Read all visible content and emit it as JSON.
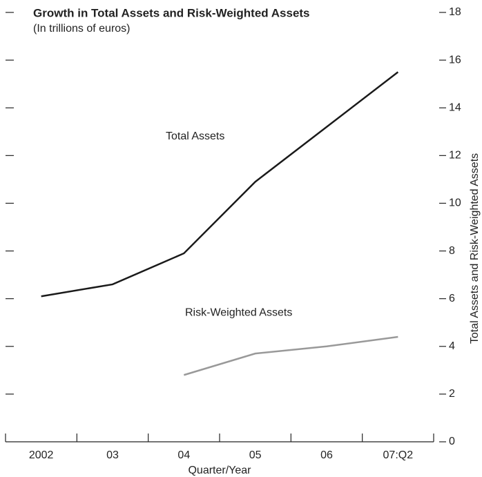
{
  "chart_data": {
    "type": "line",
    "title": "Growth in Total Assets and Risk-Weighted Assets",
    "subtitle": "(In trillions of euros)",
    "x_label": "Quarter/Year",
    "y_label": "Total Assets and Risk-Weighted Assets",
    "categories": [
      "2002",
      "03",
      "04",
      "05",
      "06",
      "07:Q2"
    ],
    "series": [
      {
        "name": "Total Assets",
        "color": "#1a1a1a",
        "values": [
          6.1,
          6.6,
          7.9,
          10.9,
          13.2,
          15.5
        ]
      },
      {
        "name": "Risk-Weighted Assets",
        "color": "#999999",
        "values": [
          null,
          null,
          2.8,
          3.7,
          4.0,
          4.4
        ]
      }
    ],
    "ylim": [
      0,
      18
    ],
    "yticks": [
      0,
      2,
      4,
      6,
      8,
      10,
      12,
      14,
      16,
      18
    ]
  }
}
